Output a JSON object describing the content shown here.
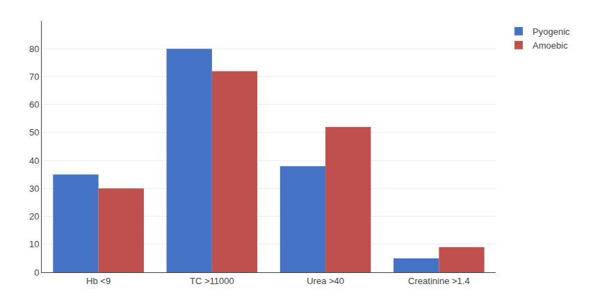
{
  "chart_data": {
    "type": "bar",
    "categories": [
      "Hb <9",
      "TC >11000",
      "Urea >40",
      "Creatinine >1.4"
    ],
    "series": [
      {
        "name": "Pyogenic",
        "color": "#4472C4",
        "values": [
          35,
          80,
          38,
          5
        ]
      },
      {
        "name": "Amoebic",
        "color": "#C0504D",
        "values": [
          30,
          72,
          52,
          9
        ]
      }
    ],
    "ylim": [
      0,
      90
    ],
    "yticks": [
      0,
      10,
      20,
      30,
      40,
      50,
      60,
      70,
      80
    ],
    "grid": true,
    "legend": "upper right"
  }
}
